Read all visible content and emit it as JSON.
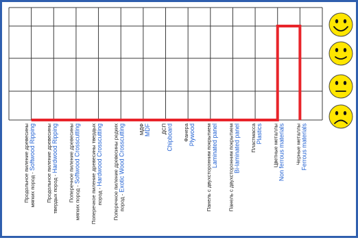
{
  "chart_data": {
    "type": "line",
    "title": "",
    "xlabel": "",
    "ylabel": "",
    "grid": true,
    "categories": [
      {
        "ru": [
          "Продольное пиление древесины",
          "мягких пород - "
        ],
        "en": "Softwood Ripping"
      },
      {
        "ru": [
          "Продольное пиление древесины",
          "твердых пород - "
        ],
        "en": "Hardwood Ripping"
      },
      {
        "ru": [
          "Поперечное пиление древесины",
          "мягких пород - "
        ],
        "en": "Softwood Crosscutting"
      },
      {
        "ru": [
          "Поперечное пиление древесины твердых",
          "пород - "
        ],
        "en": "Hardwood Crosscutting"
      },
      {
        "ru": [
          "Поперечное пиление древесины редких",
          "пород - "
        ],
        "en": "Exotic Wood Crosscutting"
      },
      {
        "ru": [
          "МДФ"
        ],
        "en": "MDF"
      },
      {
        "ru": [
          "ДСП"
        ],
        "en": "Chipboard"
      },
      {
        "ru": [
          "Фанера"
        ],
        "en": "Plywood"
      },
      {
        "ru": [
          "Панель с двухсторонним покрытием"
        ],
        "en": "Laminated panel"
      },
      {
        "ru": [
          "Панель с двухсторонним покрытием"
        ],
        "en": "Bi-laminated panel"
      },
      {
        "ru": [
          "Пластмасса"
        ],
        "en": "Plastics"
      },
      {
        "ru": [
          "Цветные металлы"
        ],
        "en": "Non ferrous materials"
      },
      {
        "ru": [
          "Черные металлы"
        ],
        "en": "Ferrous materials"
      }
    ],
    "series": [
      {
        "values": [
          0,
          0,
          0,
          0,
          0,
          0,
          0,
          0,
          0,
          0,
          0,
          3,
          0
        ]
      }
    ],
    "y_levels": [
      {
        "value": 3,
        "face": "very-happy-face-icon"
      },
      {
        "value": 2,
        "face": "happy-face-icon"
      },
      {
        "value": 1,
        "face": "neutral-face-icon"
      },
      {
        "value": 0,
        "face": "sad-face-icon"
      }
    ],
    "ylim": [
      0,
      3
    ],
    "colors": {
      "line": "#e8242a",
      "frame": "#2f5fae",
      "grid": "#3a3a3a",
      "face": "#ffe600",
      "face_outline": "#444444",
      "label_ru": "#1a1a1a",
      "label_en": "#1f5fd1"
    }
  }
}
